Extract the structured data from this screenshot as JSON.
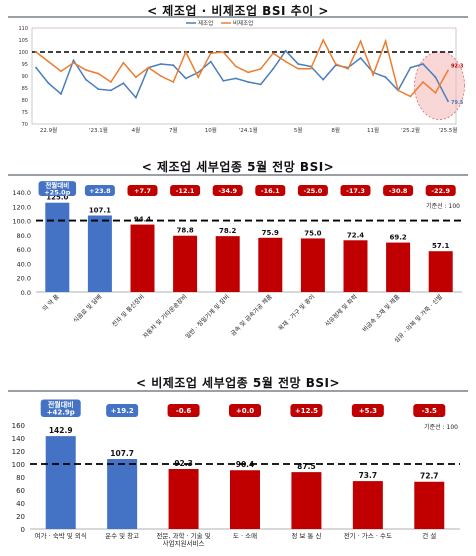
{
  "colors": {
    "manufacturing": "#4a7ebb",
    "non_manufacturing": "#ed7d31",
    "cat_blue": "#4472c4",
    "cat_red": "#c00000",
    "highlight": "#f4b6b6"
  },
  "chart_data": [
    {
      "type": "line",
      "title": "< 제조업 · 비제조업 BSI 추이 >",
      "x_tick_labels": [
        "22.9월",
        "'23.1월",
        "4월",
        "7월",
        "10월",
        "'24.1월",
        "5월",
        "8월",
        "11월",
        "'25.2월",
        "'25.5월"
      ],
      "x_tick_index": [
        1,
        5,
        8,
        11,
        14,
        17,
        21,
        24,
        27,
        30,
        33
      ],
      "ylim": [
        70,
        110
      ],
      "yticks": [
        70,
        75,
        80,
        85,
        90,
        95,
        100,
        105,
        110
      ],
      "reference_line": 100,
      "series": [
        {
          "name": "제조업",
          "values": [
            93.5,
            87,
            82.5,
            96.5,
            88.5,
            84.5,
            84,
            87,
            81,
            93.5,
            95,
            94.5,
            89,
            91.5,
            96,
            88,
            89,
            87.5,
            86.5,
            93,
            100.5,
            95,
            94,
            88.5,
            94.5,
            93.5,
            97.5,
            91.5,
            89.5,
            84,
            93.5,
            95,
            89.5,
            79.5
          ]
        },
        {
          "name": "비제조업",
          "values": [
            100,
            96,
            92,
            95.5,
            92.5,
            91,
            87.5,
            95.5,
            89.5,
            93.5,
            90,
            87.5,
            100,
            89.5,
            99.5,
            100,
            94,
            91.5,
            93,
            99.5,
            96,
            93,
            93,
            105,
            95,
            93,
            104.5,
            90.5,
            104.5,
            84,
            81.5,
            87.5,
            83,
            92.3
          ]
        }
      ],
      "end_labels": [
        "92.3",
        "79.5"
      ]
    },
    {
      "type": "bar",
      "title": "< 제조업 세부업종 5월 전망 BSI>",
      "categories": [
        "의 약 품",
        "식음료 및 담배",
        "전자 및 통신장비",
        "자동차 및 기타운송장비",
        "일반 · 정밀기계 및 장비",
        "금속 및 금속가공 제품",
        "목재 · 가구 및 종이",
        "석유정제 및 화학",
        "비금속 소재 및 제품",
        "섬유 · 의복 및 가죽 · 신발"
      ],
      "values": [
        125.0,
        107.1,
        94.4,
        78.8,
        78.2,
        75.9,
        75.0,
        72.4,
        69.2,
        57.1
      ],
      "value_labels": [
        "125.0",
        "107.1",
        "94.4",
        "78.8",
        "78.2",
        "75.9",
        "75.0",
        "72.4",
        "69.2",
        "57.1"
      ],
      "changes": [
        "전월대비\n+25.0p",
        "+23.8",
        "+7.7",
        "-12.1",
        "-34.9",
        "-16.1",
        "-25.0",
        "-17.3",
        "-30.8",
        "-22.9"
      ],
      "baseline_note": "기준선 : 100",
      "reference_line": 100,
      "ylim": [
        0,
        140
      ],
      "yticks": [
        "0.0",
        "20.0",
        "40.0",
        "60.0",
        "80.0",
        "100.0",
        "120.0",
        "140.0"
      ]
    },
    {
      "type": "bar",
      "title": "< 비제조업 세부업종 5월 전망 BSI>",
      "categories": [
        "여가 · 숙박 및 외식",
        "운수 및 창고",
        "전문, 과학 · 기술 및\n사업지원서비스",
        "도 · 소매",
        "정 보 통 신",
        "전기 · 가스 · 수도",
        "건 설"
      ],
      "values": [
        142.9,
        107.7,
        92.3,
        90.4,
        87.5,
        73.7,
        72.7
      ],
      "value_labels": [
        "142.9",
        "107.7",
        "92.3",
        "90.4",
        "87.5",
        "73.7",
        "72.7"
      ],
      "changes": [
        "전월대비\n+42.9p",
        "+19.2",
        "-0.6",
        "+0.0",
        "+12.5",
        "+5.3",
        "-3.5"
      ],
      "baseline_note": "기준선 : 100",
      "reference_line": 100,
      "ylim": [
        0,
        160
      ],
      "yticks": [
        "0",
        "20",
        "40",
        "60",
        "80",
        "100",
        "120",
        "140",
        "160"
      ]
    }
  ]
}
